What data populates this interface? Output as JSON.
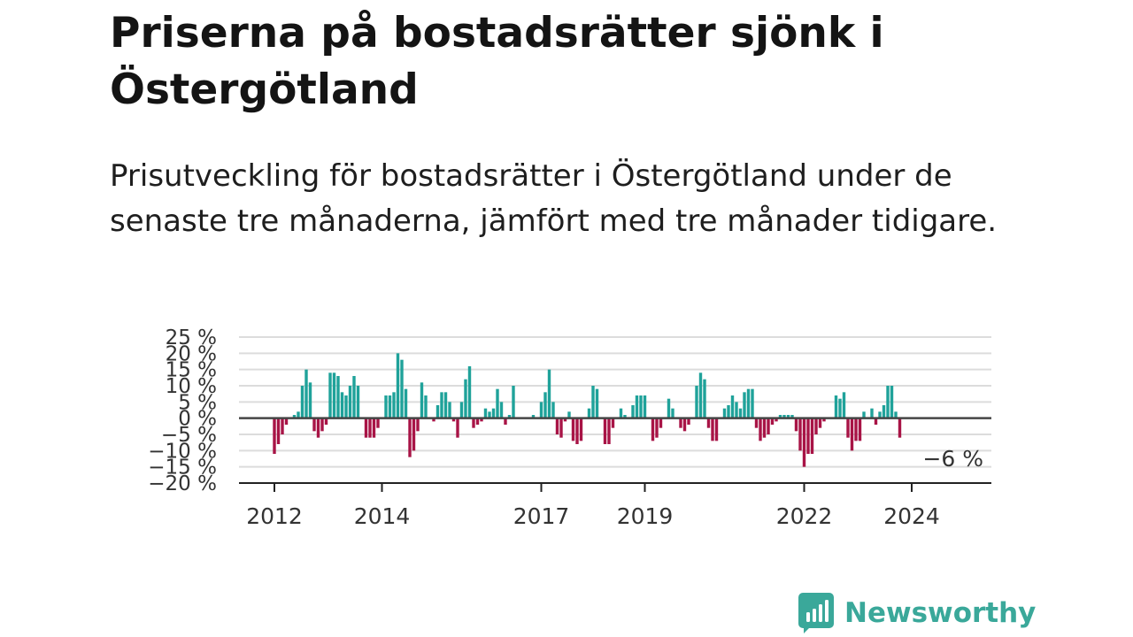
{
  "header": {
    "title": "Priserna på bostadsrätter sjönk i Östergötland",
    "subtitle": "Prisutveckling för bostadsrätter i Östergötland under de senaste tre månaderna, jämfört med tre månader tidigare."
  },
  "brand": {
    "name": "Newsworthy",
    "logo_icon": "newsworthy-bar-chart-icon",
    "color": "#3aa89a"
  },
  "colors": {
    "positive": "#1fa29a",
    "negative": "#a81446",
    "zero_line": "#444444",
    "grid": "#dcdcdc"
  },
  "chart_data": {
    "type": "bar",
    "title": "",
    "xlabel": "",
    "ylabel": "",
    "ylim": [
      -20,
      25
    ],
    "yticks": [
      25,
      20,
      15,
      10,
      5,
      0,
      -5,
      -10,
      -15,
      -20
    ],
    "ytick_labels": [
      "25 %",
      "20 %",
      "15 %",
      "10 %",
      "5 %",
      "0 %",
      "−5 %",
      "−10 %",
      "−15 %",
      "−20 %"
    ],
    "xticks": [
      "2012",
      "2014",
      "2017",
      "2019",
      "2022",
      "2024"
    ],
    "grid": true,
    "annotation": "−6 %",
    "series": [
      {
        "values": [
          -11,
          -8,
          -5,
          -2,
          0,
          1,
          2,
          10,
          15,
          11,
          -4,
          -6,
          -4,
          -2,
          14,
          14,
          13,
          8,
          7,
          10,
          13,
          10,
          0,
          -6,
          -6,
          -6,
          -3,
          0,
          7,
          7,
          8,
          20,
          18,
          9,
          -12,
          -10,
          -4,
          11,
          7,
          0,
          -1,
          4,
          8,
          8,
          5,
          -1,
          -6,
          5,
          12,
          16,
          -3,
          -2,
          -1,
          3,
          2,
          3,
          9,
          5,
          -2,
          1,
          10,
          0,
          0,
          0,
          0,
          1,
          0,
          5,
          8,
          15,
          5,
          -5,
          -6,
          -1,
          2,
          -7,
          -8,
          -7,
          0,
          3,
          10,
          9,
          0,
          -8,
          -8,
          -3,
          0,
          3,
          1,
          0,
          4,
          7,
          7,
          7,
          0,
          -7,
          -6,
          -3,
          0,
          6,
          3,
          0,
          -3,
          -4,
          -2,
          0,
          10,
          14,
          12,
          -3,
          -7,
          -7,
          0,
          3,
          4,
          7,
          5,
          3,
          8,
          9,
          9,
          -3,
          -7,
          -6,
          -5,
          -2,
          -1,
          1,
          1,
          1,
          1,
          -4,
          -10,
          -15,
          -11,
          -11,
          -5,
          -3,
          -1,
          0,
          0,
          7,
          6,
          8,
          -6,
          -10,
          -7,
          -7,
          2,
          0,
          3,
          -2,
          2,
          4,
          10,
          10,
          2,
          -6
        ]
      }
    ]
  }
}
